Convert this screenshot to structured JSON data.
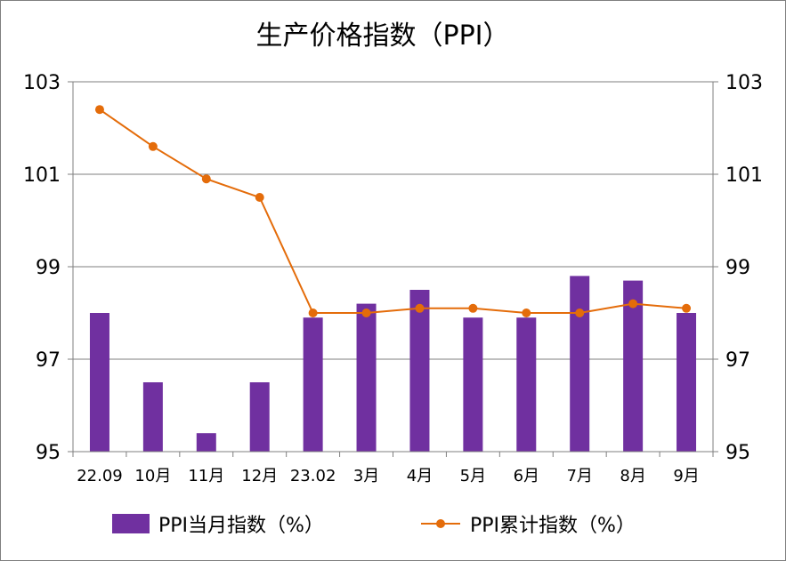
{
  "chart_data": {
    "type": "bar",
    "title": "生产价格指数（PPI）",
    "categories": [
      "22.09",
      "10月",
      "11月",
      "12月",
      "23.02",
      "3月",
      "4月",
      "5月",
      "6月",
      "7月",
      "8月",
      "9月"
    ],
    "series": [
      {
        "name": "PPI当月指数（%）",
        "type": "bar",
        "color": "#7030a0",
        "values": [
          98.0,
          96.5,
          95.4,
          96.5,
          97.9,
          98.2,
          98.5,
          97.9,
          97.9,
          98.8,
          98.7,
          98.0
        ]
      },
      {
        "name": "PPI累计指数（%）",
        "type": "line",
        "color": "#e46c0a",
        "values": [
          102.4,
          101.6,
          100.9,
          100.5,
          98.0,
          98.0,
          98.1,
          98.1,
          98.0,
          98.0,
          98.2,
          98.1
        ]
      }
    ],
    "ylim": [
      95,
      103
    ],
    "yticks": [
      "95",
      "97",
      "99",
      "101",
      "103"
    ],
    "y2ticks": [
      "95",
      "97",
      "99",
      "101",
      "103"
    ],
    "grid": true,
    "legend_position": "bottom"
  }
}
